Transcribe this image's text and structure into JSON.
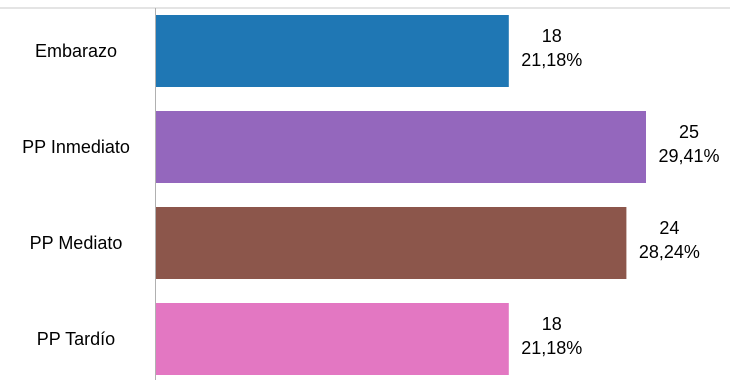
{
  "chart_data": {
    "type": "bar",
    "orientation": "horizontal",
    "categories": [
      "Embarazo",
      "PP Inmediato",
      "PP Mediato",
      "PP Tardío"
    ],
    "values": [
      18,
      25,
      24,
      18
    ],
    "percent_labels": [
      "21,18%",
      "29,41%",
      "28,24%",
      "21,18%"
    ],
    "colors": [
      "#1f77b4",
      "#9467bd",
      "#8c564b",
      "#e377c2"
    ],
    "xlim": [
      0,
      25
    ],
    "grid": false,
    "legend": "none"
  }
}
